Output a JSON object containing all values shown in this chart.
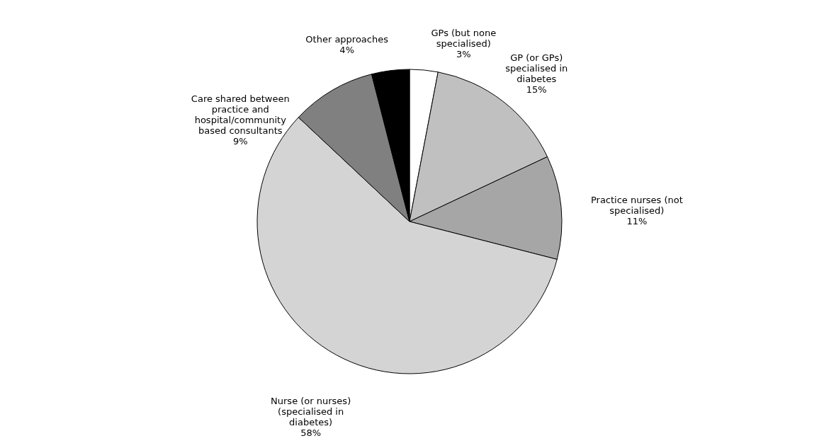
{
  "chart_data": {
    "type": "pie",
    "categories": [
      "GPs (but none specialised)",
      "GP (or GPs) specialised in diabetes",
      "Practice nurses (not specialised)",
      "Nurse (or nurses) (specialised in diabetes)",
      "Care shared between practice and hospital/community based consultants",
      "Other approaches"
    ],
    "values": [
      3,
      15,
      11,
      58,
      9,
      4
    ],
    "value_labels": [
      "3%",
      "15%",
      "11%",
      "58%",
      "9%",
      "4%"
    ],
    "colors": [
      "#ffffff",
      "#c0c0c0",
      "#a6a6a6",
      "#d4d4d4",
      "#808080",
      "#000000"
    ]
  }
}
